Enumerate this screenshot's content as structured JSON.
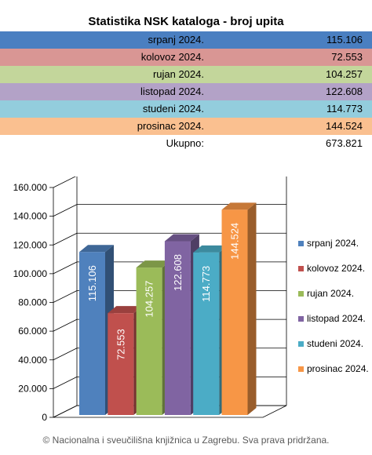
{
  "table": {
    "title": "Statistika NSK kataloga - broj upita",
    "rows": [
      {
        "label": "srpanj 2024.",
        "value": "115.106",
        "color": "#4a7fc1"
      },
      {
        "label": "kolovoz 2024.",
        "value": "72.553",
        "color": "#d99694"
      },
      {
        "label": "rujan 2024.",
        "value": "104.257",
        "color": "#c3d69b"
      },
      {
        "label": "listopad 2024.",
        "value": "122.608",
        "color": "#b3a2c7"
      },
      {
        "label": "studeni 2024.",
        "value": "114.773",
        "color": "#93cddd"
      },
      {
        "label": "prosinac 2024.",
        "value": "144.524",
        "color": "#fac090"
      }
    ],
    "total_label": "Ukupno:",
    "total_value": "673.821"
  },
  "chart_data": {
    "type": "bar",
    "categories": [
      "srpanj 2024.",
      "kolovoz 2024.",
      "rujan 2024.",
      "listopad 2024.",
      "studeni 2024.",
      "prosinac 2024."
    ],
    "values": [
      115106,
      72553,
      104257,
      122608,
      114773,
      144524
    ],
    "value_labels": [
      "115.106",
      "72.553",
      "104.257",
      "122.608",
      "114.773",
      "144.524"
    ],
    "colors": [
      "#4f81bd",
      "#c0504d",
      "#9bbb59",
      "#8064a2",
      "#4bacc6",
      "#f79646"
    ],
    "ylim": [
      0,
      160000
    ],
    "yticks": [
      0,
      20000,
      40000,
      60000,
      80000,
      100000,
      120000,
      140000,
      160000
    ],
    "ytick_labels": [
      "0",
      "20.000",
      "40.000",
      "60.000",
      "80.000",
      "100.000",
      "120.000",
      "140.000",
      "160.000"
    ],
    "legend_position": "right",
    "grid": true,
    "three_d": true
  },
  "footer": "© Nacionalna i sveučilišna knjižnica u Zagrebu. Sva prava pridržana."
}
